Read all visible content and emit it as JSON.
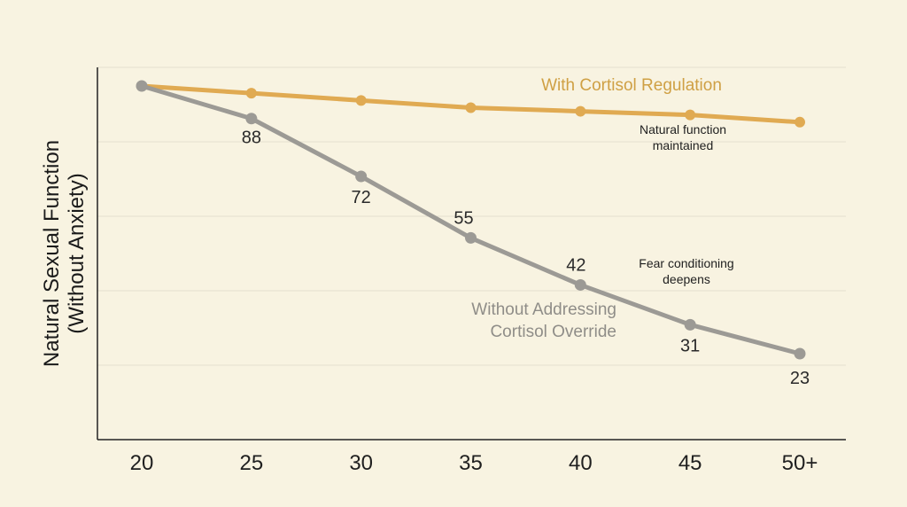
{
  "chart_data": {
    "type": "line",
    "title": "",
    "xlabel": "",
    "ylabel_lines": [
      "Natural Sexual Function",
      "(Without Anxiety)"
    ],
    "categories": [
      "20",
      "25",
      "30",
      "35",
      "40",
      "45",
      "50+"
    ],
    "ylim": [
      0,
      100
    ],
    "grid": true,
    "series": [
      {
        "name": "With Cortisol Regulation",
        "color": "#e0aa52",
        "values": [
          97,
          95,
          93,
          91,
          90,
          89,
          87
        ],
        "show_values": false
      },
      {
        "name": "Without Addressing Cortisol Override",
        "name_lines": [
          "Without Addressing",
          "Cortisol Override"
        ],
        "color": "#9c9a95",
        "values": [
          97,
          88,
          72,
          55,
          42,
          31,
          23
        ],
        "value_labels": [
          "",
          "88",
          "72",
          "55",
          "42",
          "31",
          "23"
        ],
        "show_values": true
      }
    ],
    "annotations": [
      {
        "id": "natural",
        "lines": [
          "Natural function",
          "maintained"
        ]
      },
      {
        "id": "fear",
        "lines": [
          "Fear conditioning",
          "deepens"
        ]
      }
    ]
  }
}
